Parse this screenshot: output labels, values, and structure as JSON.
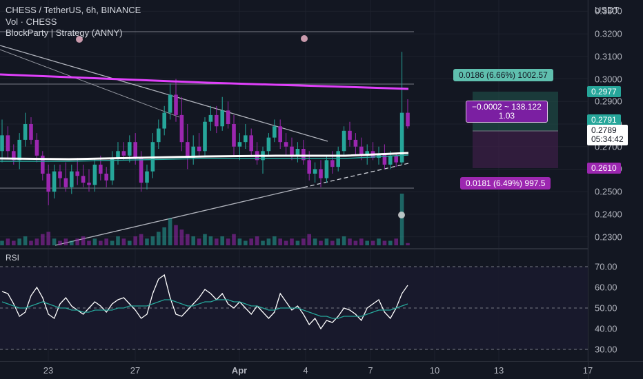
{
  "legend": {
    "symbol": "CHESS / TetherUS, 6h, BINANCE",
    "volume": "Vol · CHESS",
    "strategy": "BlockParty | Strategy (ANNY)"
  },
  "rsi_label": "RSI",
  "price_axis": {
    "currency": "USDT",
    "ticks": [
      "0.3300",
      "0.3200",
      "0.3100",
      "0.3000",
      "0.2900",
      "0.2800",
      "0.2700",
      "0.2600",
      "0.2500",
      "0.2400",
      "0.2300"
    ]
  },
  "rsi_axis": {
    "ticks": [
      "70.00",
      "60.00",
      "50.00",
      "40.00",
      "30.00"
    ]
  },
  "time_axis": {
    "ticks": [
      "23",
      "27",
      "Apr",
      "4",
      "7",
      "10",
      "13",
      "17"
    ]
  },
  "price_tags": {
    "target": "0.2977",
    "entry": "0.2791",
    "last_price": "0.2789",
    "countdown": "05:34:42",
    "stop": "0.2610"
  },
  "position_tool": {
    "profit_label": "0.0186 (6.66%) 1002.57",
    "center_line1": "−0.0002 ~ 138.122",
    "center_line2": "1.03",
    "loss_label": "0.0181 (6.49%) 997.5"
  },
  "colors": {
    "background": "#131722",
    "up": "#26a69a",
    "down": "#9c27b0",
    "magenta_line": "#e040fb",
    "rsi_line": "#ffffff",
    "rsi_ma": "#26a69a"
  },
  "chart_data": {
    "type": "candlestick",
    "symbol": "CHESS / TetherUS",
    "interval": "6h",
    "y_range": [
      0.225,
      0.335
    ],
    "candles": [
      [
        0.268,
        0.282,
        0.263,
        0.275
      ],
      [
        0.275,
        0.279,
        0.265,
        0.268
      ],
      [
        0.268,
        0.271,
        0.262,
        0.264
      ],
      [
        0.264,
        0.276,
        0.26,
        0.273
      ],
      [
        0.273,
        0.285,
        0.27,
        0.28
      ],
      [
        0.28,
        0.283,
        0.271,
        0.273
      ],
      [
        0.273,
        0.276,
        0.263,
        0.266
      ],
      [
        0.266,
        0.268,
        0.255,
        0.258
      ],
      [
        0.258,
        0.262,
        0.244,
        0.25
      ],
      [
        0.25,
        0.262,
        0.247,
        0.259
      ],
      [
        0.259,
        0.262,
        0.252,
        0.256
      ],
      [
        0.256,
        0.263,
        0.25,
        0.252
      ],
      [
        0.252,
        0.262,
        0.249,
        0.259
      ],
      [
        0.259,
        0.265,
        0.253,
        0.257
      ],
      [
        0.257,
        0.262,
        0.252,
        0.254
      ],
      [
        0.254,
        0.26,
        0.25,
        0.253
      ],
      [
        0.253,
        0.265,
        0.25,
        0.262
      ],
      [
        0.262,
        0.266,
        0.255,
        0.258
      ],
      [
        0.258,
        0.261,
        0.252,
        0.255
      ],
      [
        0.255,
        0.268,
        0.253,
        0.265
      ],
      [
        0.265,
        0.272,
        0.262,
        0.268
      ],
      [
        0.268,
        0.272,
        0.264,
        0.266
      ],
      [
        0.266,
        0.275,
        0.263,
        0.272
      ],
      [
        0.272,
        0.276,
        0.262,
        0.265
      ],
      [
        0.265,
        0.268,
        0.25,
        0.254
      ],
      [
        0.254,
        0.262,
        0.251,
        0.259
      ],
      [
        0.259,
        0.276,
        0.256,
        0.272
      ],
      [
        0.272,
        0.282,
        0.269,
        0.278
      ],
      [
        0.278,
        0.288,
        0.275,
        0.285
      ],
      [
        0.285,
        0.298,
        0.282,
        0.293
      ],
      [
        0.293,
        0.3,
        0.281,
        0.284
      ],
      [
        0.284,
        0.292,
        0.268,
        0.272
      ],
      [
        0.272,
        0.28,
        0.26,
        0.265
      ],
      [
        0.265,
        0.275,
        0.262,
        0.27
      ],
      [
        0.27,
        0.276,
        0.266,
        0.268
      ],
      [
        0.268,
        0.283,
        0.266,
        0.281
      ],
      [
        0.281,
        0.288,
        0.277,
        0.284
      ],
      [
        0.284,
        0.288,
        0.276,
        0.279
      ],
      [
        0.279,
        0.292,
        0.277,
        0.286
      ],
      [
        0.286,
        0.29,
        0.278,
        0.28
      ],
      [
        0.28,
        0.284,
        0.266,
        0.27
      ],
      [
        0.27,
        0.276,
        0.264,
        0.272
      ],
      [
        0.272,
        0.28,
        0.269,
        0.275
      ],
      [
        0.275,
        0.278,
        0.266,
        0.268
      ],
      [
        0.268,
        0.272,
        0.262,
        0.264
      ],
      [
        0.264,
        0.27,
        0.258,
        0.268
      ],
      [
        0.268,
        0.276,
        0.266,
        0.274
      ],
      [
        0.274,
        0.282,
        0.272,
        0.279
      ],
      [
        0.279,
        0.282,
        0.269,
        0.272
      ],
      [
        0.272,
        0.276,
        0.266,
        0.27
      ],
      [
        0.27,
        0.274,
        0.264,
        0.266
      ],
      [
        0.266,
        0.272,
        0.263,
        0.269
      ],
      [
        0.269,
        0.273,
        0.262,
        0.264
      ],
      [
        0.264,
        0.268,
        0.255,
        0.258
      ],
      [
        0.258,
        0.263,
        0.254,
        0.26
      ],
      [
        0.26,
        0.264,
        0.252,
        0.256
      ],
      [
        0.256,
        0.266,
        0.254,
        0.264
      ],
      [
        0.264,
        0.268,
        0.258,
        0.261
      ],
      [
        0.261,
        0.27,
        0.259,
        0.268
      ],
      [
        0.268,
        0.279,
        0.266,
        0.277
      ],
      [
        0.277,
        0.281,
        0.27,
        0.273
      ],
      [
        0.273,
        0.276,
        0.266,
        0.27
      ],
      [
        0.27,
        0.274,
        0.264,
        0.266
      ],
      [
        0.266,
        0.271,
        0.262,
        0.268
      ],
      [
        0.268,
        0.272,
        0.264,
        0.265
      ],
      [
        0.265,
        0.27,
        0.262,
        0.267
      ],
      [
        0.267,
        0.271,
        0.26,
        0.262
      ],
      [
        0.262,
        0.268,
        0.26,
        0.266
      ],
      [
        0.266,
        0.267,
        0.261,
        0.263
      ],
      [
        0.263,
        0.312,
        0.262,
        0.285
      ],
      [
        0.285,
        0.291,
        0.278,
        0.279
      ]
    ],
    "volumes": [
      2,
      3,
      2,
      3,
      4,
      2,
      3,
      5,
      6,
      3,
      2,
      3,
      2,
      3,
      4,
      2,
      3,
      2,
      3,
      2,
      4,
      3,
      2,
      4,
      5,
      3,
      4,
      6,
      8,
      12,
      9,
      7,
      5,
      4,
      3,
      5,
      4,
      3,
      4,
      3,
      5,
      3,
      2,
      3,
      4,
      2,
      3,
      4,
      3,
      2,
      3,
      2,
      3,
      5,
      3,
      2,
      3,
      2,
      3,
      4,
      3,
      2,
      3,
      2,
      2,
      3,
      2,
      2,
      3,
      23,
      1
    ],
    "indicator_line_magenta": [
      0.3015,
      0.3013,
      0.3011,
      0.3009,
      0.3007,
      0.3005,
      0.3003,
      0.3001,
      0.2999,
      0.2997,
      0.2995,
      0.2993,
      0.2991
    ],
    "rsi": [
      58,
      57,
      52,
      46,
      48,
      56,
      60,
      55,
      47,
      45,
      52,
      55,
      51,
      49,
      47,
      50,
      53,
      51,
      48,
      52,
      54,
      55,
      52,
      49,
      45,
      47,
      57,
      64,
      66,
      55,
      47,
      46,
      49,
      52,
      55,
      59,
      57,
      54,
      57,
      52,
      50,
      53,
      50,
      47,
      51,
      48,
      45,
      48,
      57,
      53,
      49,
      51,
      47,
      42,
      45,
      40,
      44,
      43,
      46,
      50,
      49,
      47,
      44,
      50,
      52,
      54,
      48,
      45,
      50,
      57,
      61
    ],
    "rsi_ma": [
      53,
      52,
      51,
      50,
      50,
      51,
      52,
      53,
      52,
      51,
      50,
      50,
      49,
      49,
      48,
      48,
      49,
      49,
      49,
      49,
      50,
      50,
      51,
      51,
      51,
      51,
      52,
      53,
      54,
      54,
      53,
      52,
      51,
      51,
      52,
      53,
      53,
      54,
      54,
      54,
      53,
      53,
      52,
      51,
      51,
      50,
      49,
      49,
      50,
      50,
      50,
      50,
      49,
      48,
      47,
      46,
      46,
      45,
      45,
      46,
      46,
      46,
      46,
      47,
      48,
      49,
      49,
      49,
      50,
      51,
      52
    ],
    "rsi_levels": [
      70,
      50,
      30
    ],
    "rsi_range": [
      25,
      75
    ]
  }
}
